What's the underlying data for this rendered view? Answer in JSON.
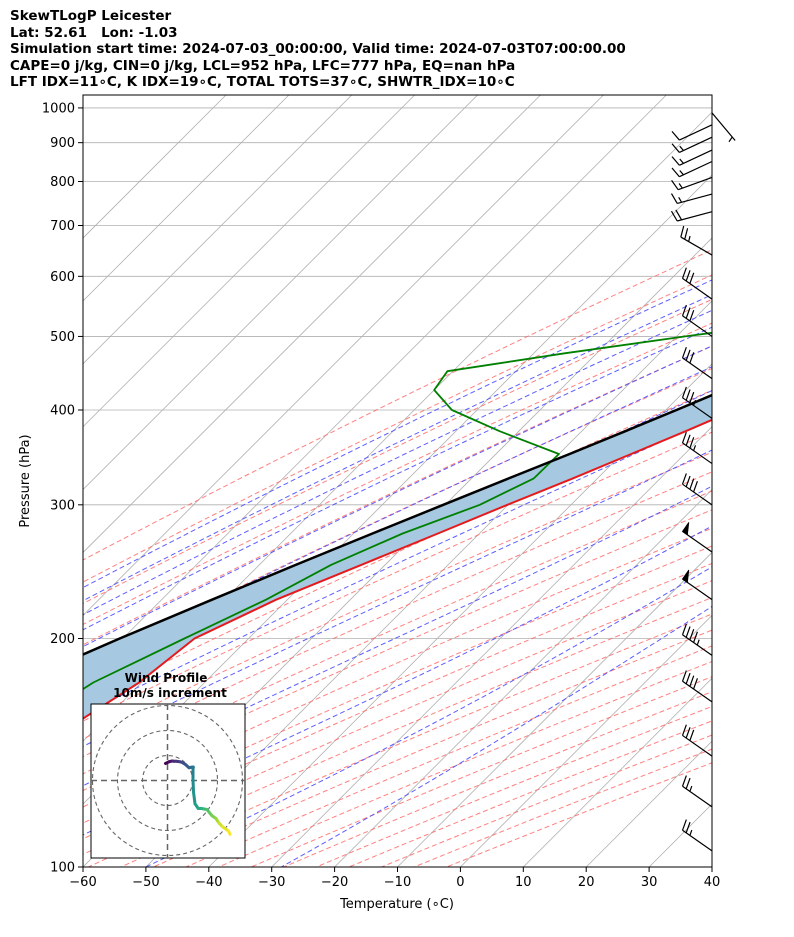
{
  "header": {
    "lines": [
      "SkewTLogP Leicester",
      "Lat: 52.61   Lon: -1.03",
      "Simulation start time: 2024-07-03_00:00:00, Valid time: 2024-07-03T07:00:00.00",
      "CAPE=0 j/kg, CIN=0 j/kg, LCL=952 hPa, LFC=777 hPa, EQ=nan hPa",
      "LFT IDX=11∘C, K IDX=19∘C, TOTAL TOTS=37∘C, SHWTR_IDX=10∘C"
    ]
  },
  "chart_data": {
    "type": "line",
    "title": "",
    "xlabel": "Temperature (∘C)",
    "ylabel": "Pressure (hPa)",
    "xlim": [
      -60,
      40
    ],
    "ylim": [
      1040,
      100
    ],
    "yscale": "log",
    "skew_deg": 45,
    "grid": true,
    "x_ticks": [
      "−60",
      "−50",
      "−40",
      "−30",
      "−20",
      "−10",
      "0",
      "10",
      "20",
      "30",
      "40"
    ],
    "x_tick_values": [
      -60,
      -50,
      -40,
      -30,
      -20,
      -10,
      0,
      10,
      20,
      30,
      40
    ],
    "y_ticks": [
      "100",
      "200",
      "300",
      "400",
      "500",
      "600",
      "700",
      "800",
      "900",
      "1000"
    ],
    "y_tick_values": [
      100,
      200,
      300,
      400,
      500,
      600,
      700,
      800,
      900,
      1000
    ],
    "colors": {
      "temperature": "#e41a1c",
      "dewpoint": "#008000",
      "parcel": "#000000",
      "shade": "#a6c8e0",
      "dry_adiabat": "#ff6b6b",
      "moist_adiabat": "#4d4dff",
      "mixing_ratio": "#9999ff",
      "isotherm_grid": "#b0b0b0"
    },
    "series": [
      {
        "key": "temperature",
        "pressure": [
          988,
          975,
          960,
          945,
          925,
          900,
          875,
          850,
          825,
          800,
          775,
          750,
          725,
          700,
          675,
          650,
          625,
          600,
          575,
          550,
          525,
          500,
          475,
          450,
          425,
          400,
          375,
          350,
          325,
          300,
          275,
          250,
          225,
          200,
          175,
          150,
          125,
          110,
          100
        ],
        "values": [
          12.8,
          13.0,
          13.3,
          12.4,
          11.2,
          9.7,
          8.3,
          6.9,
          5.6,
          4.3,
          3.2,
          2.2,
          1.6,
          1.3,
          0.6,
          -0.6,
          -2.0,
          -3.9,
          -6.1,
          -8.6,
          -11.4,
          -14.4,
          -17.8,
          -21.3,
          -25.1,
          -29.0,
          -33.5,
          -38.5,
          -43.9,
          -50.1,
          -56.6,
          -63.8,
          -71.8,
          -78.6,
          -80.4,
          -84.9,
          -90.3,
          -92.8,
          -94.5
        ]
      },
      {
        "key": "dewpoint",
        "pressure": [
          988,
          975,
          960,
          945,
          925,
          900,
          875,
          850,
          825,
          800,
          775,
          750,
          725,
          700,
          675,
          650,
          625,
          600,
          575,
          550,
          525,
          500,
          475,
          450,
          425,
          400,
          375,
          350,
          325,
          300,
          275,
          250,
          225,
          200,
          175,
          150,
          125,
          110,
          100
        ],
        "values": [
          10.0,
          9.8,
          8.0,
          8.6,
          7.6,
          6.3,
          3.8,
          1.0,
          -1.0,
          -1.4,
          -2.4,
          -5.6,
          -6.5,
          -3.9,
          -3.9,
          -5.1,
          -6.9,
          -10.1,
          -14.4,
          -19.4,
          -32.0,
          -48.6,
          -65.1,
          -80.9,
          -80.0,
          -74.0,
          -63.0,
          -50.0,
          -50.1,
          -54.5,
          -62.2,
          -68.6,
          -73.4,
          -80.2,
          -87.7,
          -92.4,
          -96.5,
          -97.6,
          -98.0
        ]
      },
      {
        "key": "parcel",
        "pressure": [
          988,
          975,
          952,
          925,
          900,
          875,
          850,
          825,
          800,
          775,
          750,
          725,
          700,
          675,
          650,
          625,
          600,
          575,
          550,
          525,
          500,
          475,
          450,
          425,
          400,
          375,
          350,
          325,
          300,
          275,
          250,
          225,
          200,
          175,
          150,
          125,
          110,
          100
        ],
        "values": [
          12.0,
          10.6,
          9.5,
          8.6,
          7.6,
          6.5,
          5.4,
          4.2,
          2.9,
          1.6,
          0.1,
          -1.5,
          -3.2,
          -5.0,
          -7.0,
          -9.2,
          -11.5,
          -14.0,
          -16.7,
          -19.6,
          -22.8,
          -26.2,
          -29.9,
          -33.9,
          -38.3,
          -43.1,
          -48.3,
          -54.1,
          -60.3,
          -67.0,
          -74.2,
          -82.0,
          -90.5,
          -99.5,
          -109.0,
          -119.0,
          -125.5,
          -130.0
        ]
      }
    ],
    "wind_barbs": {
      "pressure": [
        985,
        950,
        915,
        880,
        850,
        810,
        770,
        730,
        640,
        560,
        500,
        440,
        390,
        340,
        300,
        260,
        225,
        190,
        165,
        140,
        120,
        105
      ],
      "speed_kt": [
        5,
        10,
        15,
        15,
        15,
        15,
        15,
        20,
        25,
        30,
        30,
        30,
        35,
        35,
        40,
        50,
        50,
        45,
        40,
        30,
        25,
        25
      ],
      "direction_deg": [
        140,
        245,
        245,
        245,
        245,
        250,
        255,
        255,
        300,
        305,
        305,
        305,
        305,
        305,
        305,
        305,
        305,
        305,
        305,
        305,
        305,
        305
      ]
    },
    "inset": {
      "title": "Wind Profile",
      "subtitle": "10m/s increment",
      "rings_ms": [
        10,
        20,
        30
      ],
      "hodograph_u": [
        -0.8,
        0.6,
        1.8,
        2.5,
        3.4,
        5.0,
        6.1,
        7.3,
        8.6,
        9.6,
        10.3,
        10.2,
        10.2,
        10.4,
        11.0,
        12.3,
        13.6,
        14.7,
        15.8,
        16.8,
        17.8,
        19.4,
        20.0,
        20.6,
        21.9,
        24.4,
        25.0
      ],
      "hodograph_v": [
        6.8,
        7.5,
        7.8,
        7.7,
        7.7,
        7.5,
        7.1,
        6.3,
        5.1,
        5.3,
        5.4,
        4.1,
        0.5,
        -4.6,
        -9.3,
        -11.2,
        -11.2,
        -11.4,
        -11.6,
        -12.9,
        -14.1,
        -15.2,
        -16.2,
        -17.0,
        -18.4,
        -20.2,
        -21.5
      ]
    }
  }
}
